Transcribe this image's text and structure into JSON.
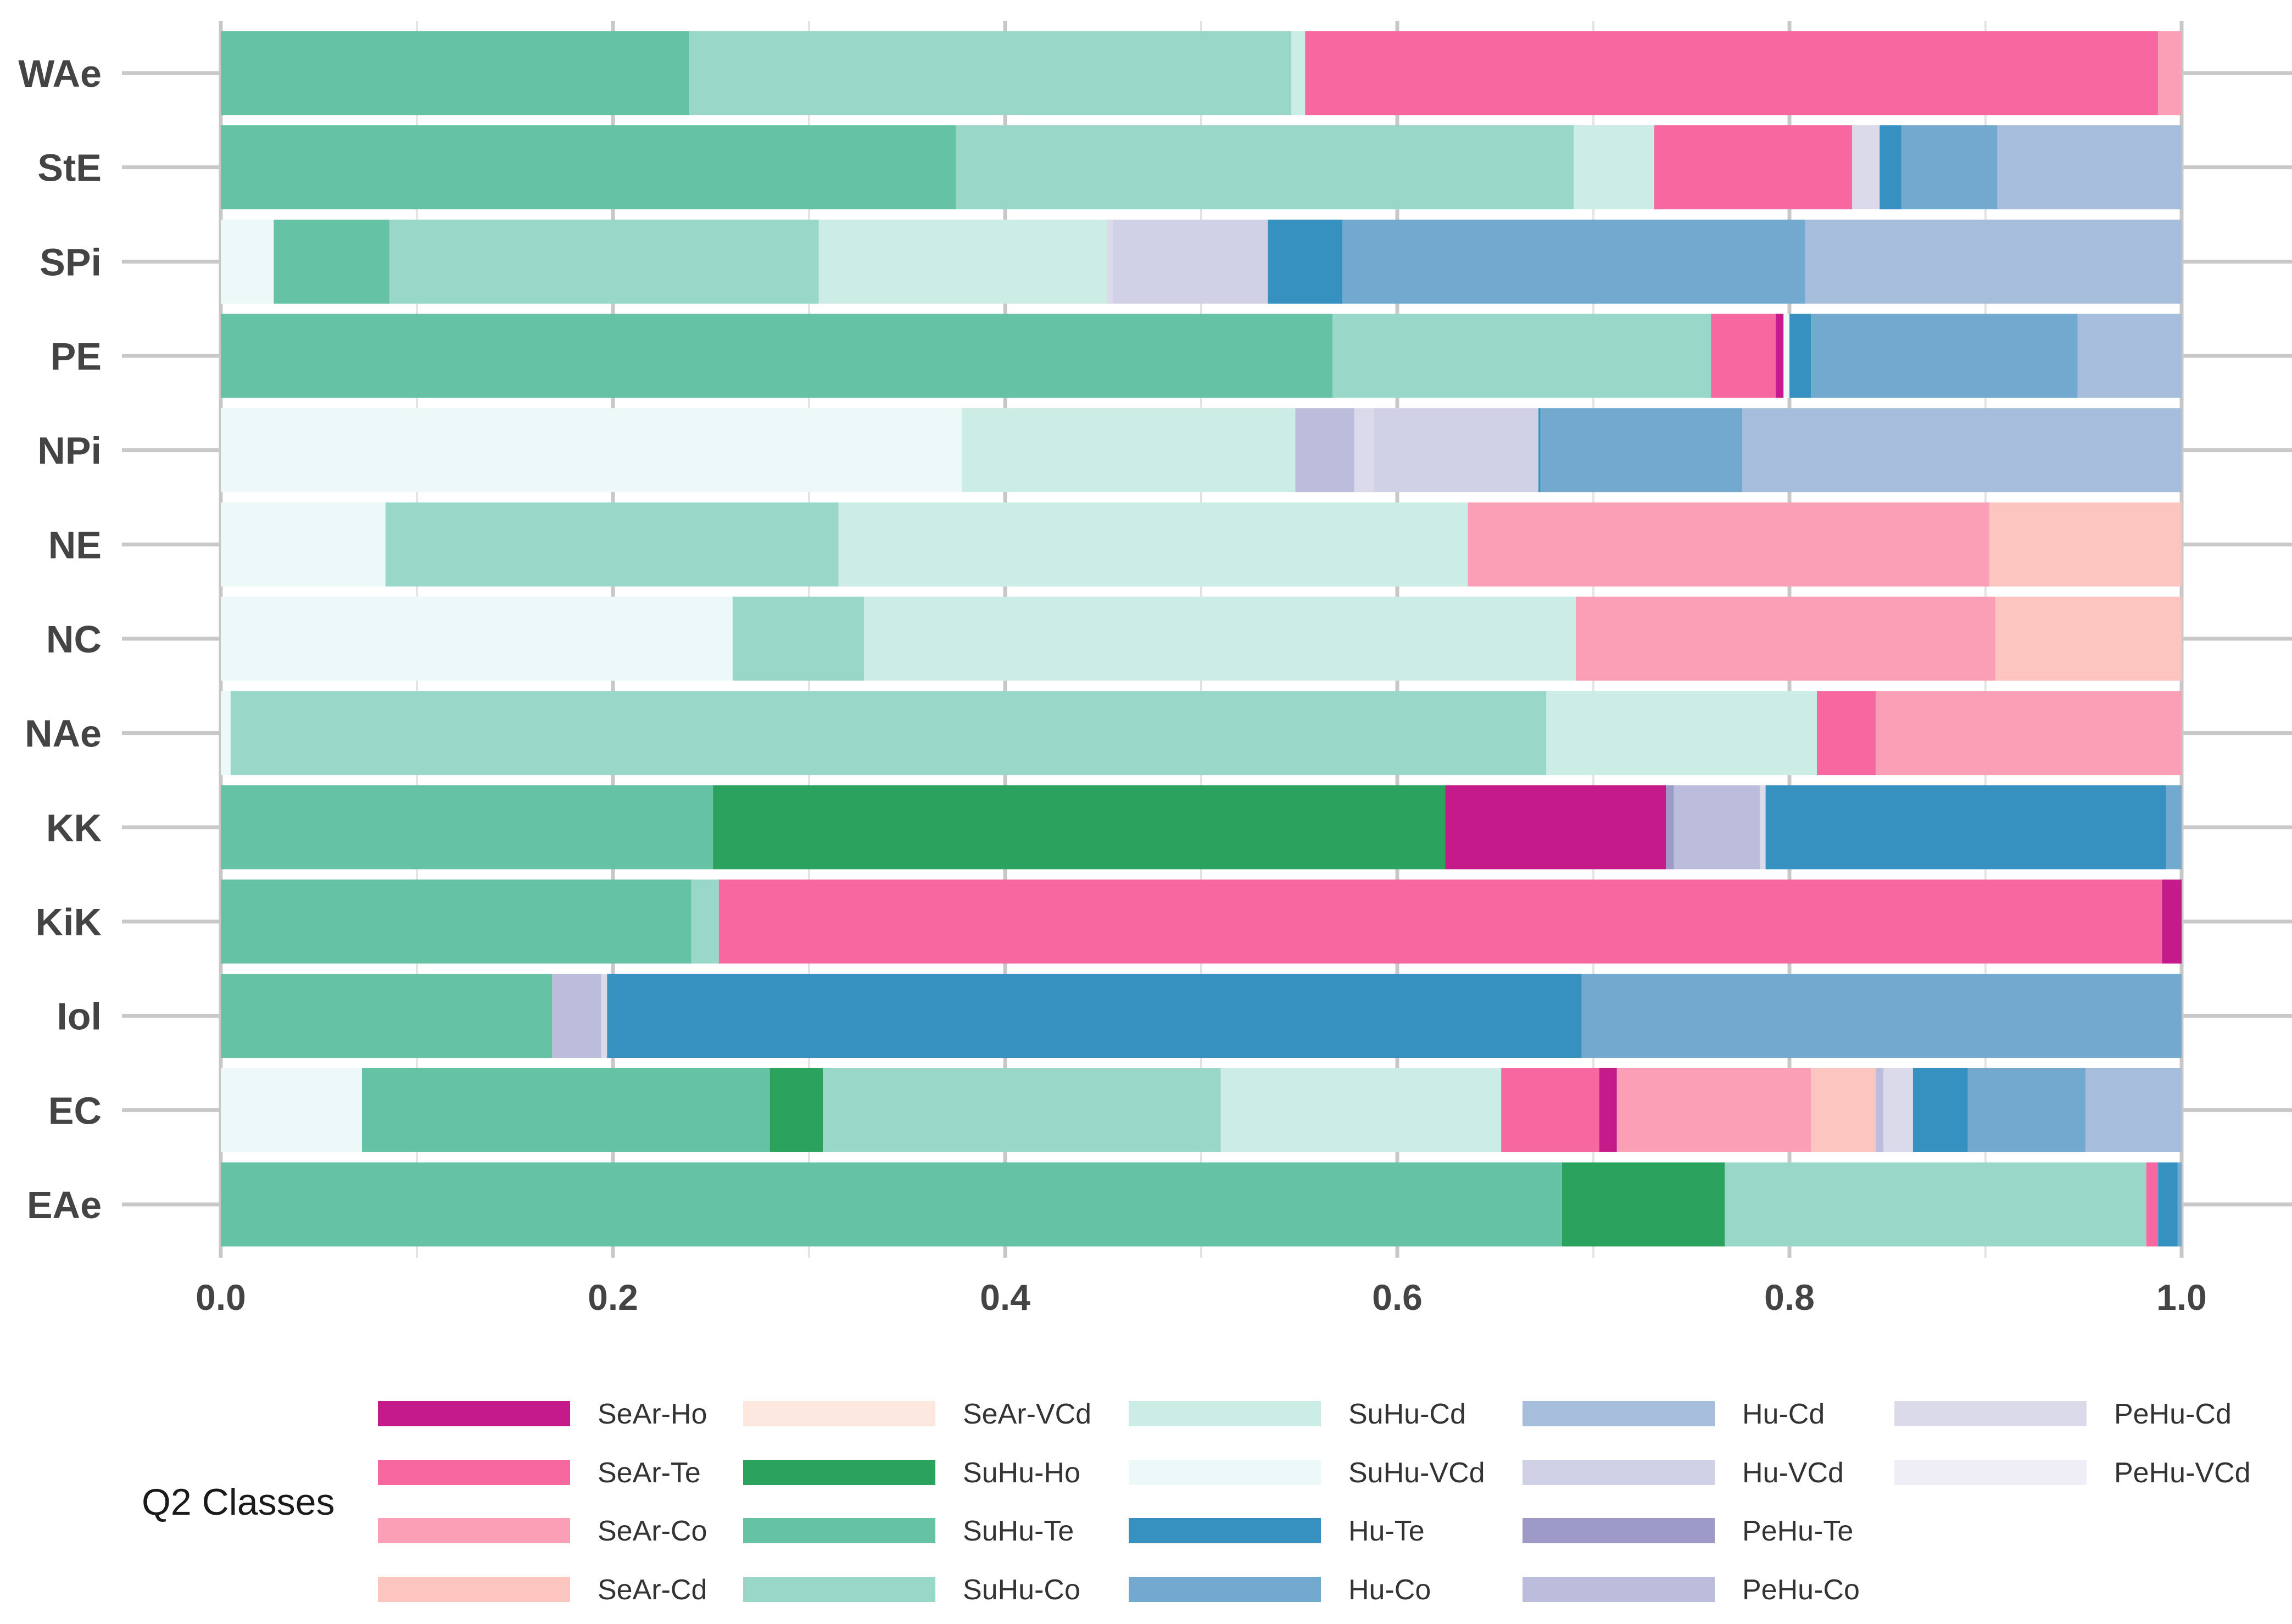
{
  "chart_data": {
    "type": "bar",
    "orientation": "horizontal",
    "stacked": true,
    "title": "",
    "xlabel": "",
    "ylabel": "",
    "xlim": [
      0,
      1
    ],
    "grid": true,
    "x_ticks": [
      "0.0",
      "0.2",
      "0.4",
      "0.6",
      "0.8",
      "1.0"
    ],
    "x_tick_values": [
      0,
      0.2,
      0.4,
      0.6,
      0.8,
      1.0
    ],
    "categories": [
      "WAe",
      "StE",
      "SPi",
      "PE",
      "NPi",
      "NE",
      "NC",
      "NAe",
      "KK",
      "KiK",
      "Iol",
      "EC",
      "EAe"
    ],
    "legend_title": "Q2 Classes",
    "legend_position": "bottom",
    "classes": [
      {
        "name": "SeAr-Ho",
        "color": "#C51B8A"
      },
      {
        "name": "SeAr-Te",
        "color": "#F768A1"
      },
      {
        "name": "SeAr-Co",
        "color": "#FA9FB5"
      },
      {
        "name": "SeAr-Cd",
        "color": "#FCC5C0"
      },
      {
        "name": "SeAr-VCd",
        "color": "#FDE8E0"
      },
      {
        "name": "SuHu-Ho",
        "color": "#2CA25F"
      },
      {
        "name": "SuHu-Te",
        "color": "#66C2A4"
      },
      {
        "name": "SuHu-Co",
        "color": "#99D8C9"
      },
      {
        "name": "SuHu-Cd",
        "color": "#CCECE6"
      },
      {
        "name": "SuHu-VCd",
        "color": "#EDF8F8"
      },
      {
        "name": "Hu-Te",
        "color": "#3690C0"
      },
      {
        "name": "Hu-Co",
        "color": "#74A9CF"
      },
      {
        "name": "Hu-Cd",
        "color": "#A6BDDB"
      },
      {
        "name": "Hu-VCd",
        "color": "#D0D1E6"
      },
      {
        "name": "PeHu-Te",
        "color": "#9E9AC8"
      },
      {
        "name": "PeHu-Co",
        "color": "#BCBDDC"
      },
      {
        "name": "PeHu-Cd",
        "color": "#DADAEB"
      },
      {
        "name": "PeHu-VCd",
        "color": "#EFEDF5"
      }
    ],
    "bars": [
      {
        "category": "WAe",
        "segments": [
          {
            "class": "SuHu-Te",
            "value": 0.239
          },
          {
            "class": "SuHu-Co",
            "value": 0.307
          },
          {
            "class": "SuHu-Cd",
            "value": 0.007
          },
          {
            "class": "SeAr-Te",
            "value": 0.435
          },
          {
            "class": "SeAr-Co",
            "value": 0.012
          }
        ]
      },
      {
        "category": "StE",
        "segments": [
          {
            "class": "SuHu-Te",
            "value": 0.375
          },
          {
            "class": "SuHu-Co",
            "value": 0.315
          },
          {
            "class": "SuHu-Cd",
            "value": 0.041
          },
          {
            "class": "SeAr-Te",
            "value": 0.101
          },
          {
            "class": "PeHu-Cd",
            "value": 0.014
          },
          {
            "class": "Hu-Te",
            "value": 0.011
          },
          {
            "class": "Hu-Co",
            "value": 0.049
          },
          {
            "class": "Hu-Cd",
            "value": 0.094
          }
        ]
      },
      {
        "category": "SPi",
        "segments": [
          {
            "class": "SuHu-VCd",
            "value": 0.027
          },
          {
            "class": "SuHu-Te",
            "value": 0.059
          },
          {
            "class": "SuHu-Co",
            "value": 0.219
          },
          {
            "class": "SuHu-Cd",
            "value": 0.147
          },
          {
            "class": "PeHu-Cd",
            "value": 0.003
          },
          {
            "class": "Hu-VCd",
            "value": 0.079
          },
          {
            "class": "Hu-Te",
            "value": 0.038
          },
          {
            "class": "Hu-Co",
            "value": 0.236
          },
          {
            "class": "Hu-Cd",
            "value": 0.192
          }
        ]
      },
      {
        "category": "PE",
        "segments": [
          {
            "class": "SuHu-Te",
            "value": 0.567
          },
          {
            "class": "SuHu-Co",
            "value": 0.193
          },
          {
            "class": "SeAr-Te",
            "value": 0.033
          },
          {
            "class": "SeAr-Ho",
            "value": 0.004
          },
          {
            "class": "SuHu-VCd",
            "value": 0.003
          },
          {
            "class": "Hu-Te",
            "value": 0.011
          },
          {
            "class": "Hu-Co",
            "value": 0.136
          },
          {
            "class": "Hu-Cd",
            "value": 0.053
          }
        ]
      },
      {
        "category": "NPi",
        "segments": [
          {
            "class": "SuHu-VCd",
            "value": 0.378
          },
          {
            "class": "SuHu-Cd",
            "value": 0.17
          },
          {
            "class": "PeHu-Co",
            "value": 0.03
          },
          {
            "class": "PeHu-Cd",
            "value": 0.01
          },
          {
            "class": "Hu-VCd",
            "value": 0.084
          },
          {
            "class": "Hu-Te",
            "value": 0.001
          },
          {
            "class": "Hu-Co",
            "value": 0.103
          },
          {
            "class": "Hu-Cd",
            "value": 0.224
          }
        ]
      },
      {
        "category": "NE",
        "segments": [
          {
            "class": "SuHu-VCd",
            "value": 0.084
          },
          {
            "class": "SuHu-Co",
            "value": 0.231
          },
          {
            "class": "SuHu-Cd",
            "value": 0.321
          },
          {
            "class": "SeAr-Co",
            "value": 0.266
          },
          {
            "class": "SeAr-Cd",
            "value": 0.098
          }
        ]
      },
      {
        "category": "NC",
        "segments": [
          {
            "class": "SuHu-VCd",
            "value": 0.261
          },
          {
            "class": "SuHu-Co",
            "value": 0.067
          },
          {
            "class": "SuHu-Cd",
            "value": 0.363
          },
          {
            "class": "SeAr-Co",
            "value": 0.214
          },
          {
            "class": "SeAr-Cd",
            "value": 0.095
          }
        ]
      },
      {
        "category": "NAe",
        "segments": [
          {
            "class": "SuHu-VCd",
            "value": 0.005
          },
          {
            "class": "SuHu-Co",
            "value": 0.671
          },
          {
            "class": "SuHu-Cd",
            "value": 0.138
          },
          {
            "class": "SeAr-Te",
            "value": 0.03
          },
          {
            "class": "SeAr-Co",
            "value": 0.156
          }
        ]
      },
      {
        "category": "KK",
        "segments": [
          {
            "class": "SuHu-Te",
            "value": 0.252
          },
          {
            "class": "SuHu-Ho",
            "value": 0.375
          },
          {
            "class": "SeAr-Ho",
            "value": 0.113
          },
          {
            "class": "PeHu-Te",
            "value": 0.004
          },
          {
            "class": "PeHu-Co",
            "value": 0.044
          },
          {
            "class": "PeHu-Cd",
            "value": 0.003
          },
          {
            "class": "Hu-Te",
            "value": 0.205
          },
          {
            "class": "Hu-Co",
            "value": 0.008
          }
        ]
      },
      {
        "category": "KiK",
        "segments": [
          {
            "class": "SuHu-Te",
            "value": 0.24
          },
          {
            "class": "SuHu-Co",
            "value": 0.014
          },
          {
            "class": "SeAr-Te",
            "value": 0.736
          },
          {
            "class": "SeAr-Ho",
            "value": 0.01
          }
        ]
      },
      {
        "category": "Iol",
        "segments": [
          {
            "class": "SuHu-Te",
            "value": 0.169
          },
          {
            "class": "PeHu-Co",
            "value": 0.025
          },
          {
            "class": "PeHu-Cd",
            "value": 0.003
          },
          {
            "class": "Hu-Te",
            "value": 0.497
          },
          {
            "class": "Hu-Co",
            "value": 0.306
          }
        ]
      },
      {
        "category": "EC",
        "segments": [
          {
            "class": "SuHu-VCd",
            "value": 0.072
          },
          {
            "class": "SuHu-Te",
            "value": 0.208
          },
          {
            "class": "SuHu-Ho",
            "value": 0.027
          },
          {
            "class": "SuHu-Co",
            "value": 0.203
          },
          {
            "class": "SuHu-Cd",
            "value": 0.143
          },
          {
            "class": "SeAr-Te",
            "value": 0.05
          },
          {
            "class": "SeAr-Ho",
            "value": 0.009
          },
          {
            "class": "SeAr-Co",
            "value": 0.099
          },
          {
            "class": "SeAr-Cd",
            "value": 0.033
          },
          {
            "class": "PeHu-Co",
            "value": 0.004
          },
          {
            "class": "PeHu-Cd",
            "value": 0.015
          },
          {
            "class": "Hu-Te",
            "value": 0.028
          },
          {
            "class": "Hu-Co",
            "value": 0.06
          },
          {
            "class": "Hu-Cd",
            "value": 0.049
          }
        ]
      },
      {
        "category": "EAe",
        "segments": [
          {
            "class": "SuHu-Te",
            "value": 0.684
          },
          {
            "class": "SuHu-Ho",
            "value": 0.083
          },
          {
            "class": "SuHu-Co",
            "value": 0.215
          },
          {
            "class": "SeAr-Te",
            "value": 0.006
          },
          {
            "class": "Hu-Te",
            "value": 0.01
          },
          {
            "class": "Hu-Co",
            "value": 0.002
          }
        ]
      }
    ]
  }
}
